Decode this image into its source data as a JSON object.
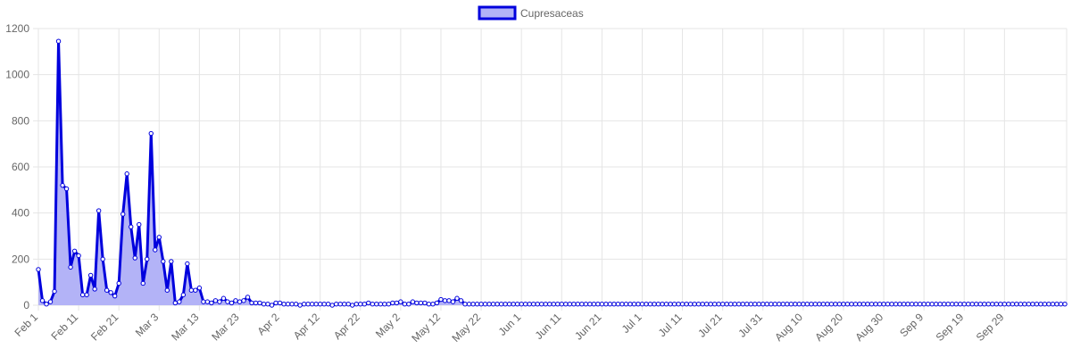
{
  "chart_data": {
    "type": "area",
    "title": "",
    "xlabel": "",
    "ylabel": "",
    "ylim": [
      0,
      1200
    ],
    "y_ticks": [
      0,
      200,
      400,
      600,
      800,
      1000,
      1200
    ],
    "grid": true,
    "legend_position": "top-center",
    "x_start": "Feb 1",
    "x_tick_labels": [
      "Feb 1",
      "Feb 11",
      "Feb 21",
      "Mar 3",
      "Mar 13",
      "Mar 23",
      "Apr 2",
      "Apr 12",
      "Apr 22",
      "May 2",
      "May 12",
      "May 22",
      "Jun 1",
      "Jun 11",
      "Jun 21",
      "Jul 1",
      "Jul 11",
      "Jul 21",
      "Jul 31",
      "Aug 10",
      "Aug 20",
      "Aug 30",
      "Sep 9",
      "Sep 19",
      "Sep 29"
    ],
    "series": [
      {
        "name": "Cupresaceas",
        "color": "#0000dd",
        "fill": "#b3b3f7",
        "values": [
          155,
          20,
          5,
          15,
          60,
          1145,
          520,
          505,
          165,
          235,
          215,
          45,
          45,
          130,
          70,
          410,
          200,
          65,
          55,
          40,
          95,
          395,
          570,
          340,
          205,
          350,
          95,
          200,
          745,
          240,
          295,
          190,
          65,
          190,
          10,
          15,
          45,
          180,
          65,
          65,
          75,
          15,
          15,
          10,
          20,
          15,
          30,
          15,
          10,
          20,
          15,
          20,
          35,
          10,
          10,
          10,
          5,
          5,
          0,
          10,
          10,
          5,
          5,
          5,
          5,
          0,
          5,
          5,
          5,
          5,
          5,
          5,
          5,
          0,
          5,
          5,
          5,
          5,
          0,
          5,
          5,
          5,
          10,
          5,
          5,
          5,
          5,
          5,
          10,
          10,
          15,
          5,
          5,
          15,
          10,
          10,
          10,
          5,
          5,
          10,
          25,
          20,
          20,
          15,
          30,
          20,
          5,
          5,
          5,
          5,
          5,
          5,
          5,
          5,
          5,
          5,
          5,
          5,
          5,
          5,
          5,
          5,
          5,
          5,
          5,
          5,
          5,
          5,
          5,
          5,
          5,
          5,
          5,
          5,
          5,
          5,
          5,
          5,
          5,
          5,
          5,
          5,
          5,
          5,
          5,
          5,
          5,
          5,
          5,
          5,
          5,
          5,
          5,
          5,
          5,
          5,
          5,
          5,
          5,
          5,
          5,
          5,
          5,
          5,
          5,
          5,
          5,
          5,
          5,
          5,
          5,
          5,
          5,
          5,
          5,
          5,
          5,
          5,
          5,
          5,
          5,
          5,
          5,
          5,
          5,
          5,
          5,
          5,
          5,
          5,
          5,
          5,
          5,
          5,
          5,
          5,
          5,
          5,
          5,
          5,
          5,
          5,
          5,
          5,
          5,
          5,
          5,
          5,
          5,
          5,
          5,
          5,
          5,
          5,
          5,
          5,
          5,
          5,
          5,
          5,
          5,
          5,
          5,
          5,
          5,
          5,
          5,
          5,
          5,
          5,
          5,
          5,
          5,
          5,
          5,
          5,
          5,
          5,
          5,
          5,
          5,
          5,
          5,
          5,
          5,
          5,
          5,
          5,
          5,
          5,
          5,
          5,
          5,
          5,
          5,
          5
        ]
      }
    ]
  }
}
